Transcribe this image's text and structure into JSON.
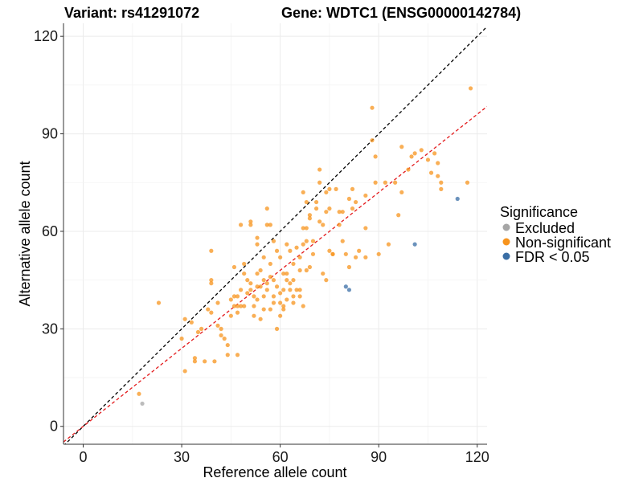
{
  "chart_data": {
    "type": "scatter",
    "title_left": "Variant: rs41291072",
    "title_right": "Gene: WDTC1 (ENSG00000142784)",
    "xlabel": "Reference allele count",
    "ylabel": "Alternative allele count",
    "xlim": [
      -6,
      123
    ],
    "ylim": [
      -5.5,
      124
    ],
    "xticks": [
      0,
      30,
      60,
      90,
      120
    ],
    "yticks": [
      0,
      30,
      60,
      90,
      120
    ],
    "grid": true,
    "legend": {
      "title": "Significance",
      "position": "right",
      "entries": [
        {
          "label": "Excluded",
          "color": "#a6a6a6"
        },
        {
          "label": "Non-significant",
          "color": "#f7941d"
        },
        {
          "label": "FDR < 0.05",
          "color": "#3a6ea5"
        }
      ]
    },
    "reference_lines": [
      {
        "name": "identity",
        "color": "#000000",
        "slope": 1,
        "intercept": 0
      },
      {
        "name": "fit",
        "color": "#e31a1c",
        "slope": 0.8,
        "intercept": 0
      }
    ],
    "series": [
      {
        "name": "Excluded",
        "color": "#a6a6a6",
        "points": [
          [
            18,
            7
          ]
        ]
      },
      {
        "name": "Non-significant",
        "color": "#f7941d",
        "points": [
          [
            17,
            10
          ],
          [
            23,
            38
          ],
          [
            30,
            27
          ],
          [
            31,
            17
          ],
          [
            31,
            33
          ],
          [
            33,
            32
          ],
          [
            34,
            21
          ],
          [
            34,
            20
          ],
          [
            35,
            29
          ],
          [
            36,
            30
          ],
          [
            37,
            20
          ],
          [
            38,
            36
          ],
          [
            39,
            35
          ],
          [
            39,
            45
          ],
          [
            39,
            54
          ],
          [
            39,
            44
          ],
          [
            40,
            20
          ],
          [
            41,
            38
          ],
          [
            41,
            31
          ],
          [
            42,
            30
          ],
          [
            42,
            28
          ],
          [
            43,
            27
          ],
          [
            44,
            22
          ],
          [
            44,
            25
          ],
          [
            45,
            34
          ],
          [
            45,
            39
          ],
          [
            46,
            49
          ],
          [
            46,
            40
          ],
          [
            46,
            37
          ],
          [
            47,
            35
          ],
          [
            47,
            40
          ],
          [
            47,
            22
          ],
          [
            47,
            37
          ],
          [
            48,
            42
          ],
          [
            48,
            62
          ],
          [
            48,
            37
          ],
          [
            49,
            47
          ],
          [
            49,
            50
          ],
          [
            49,
            37
          ],
          [
            50,
            41
          ],
          [
            50,
            45
          ],
          [
            51,
            42
          ],
          [
            51,
            62
          ],
          [
            51,
            63
          ],
          [
            51,
            44
          ],
          [
            52,
            40
          ],
          [
            52,
            37
          ],
          [
            52,
            34
          ],
          [
            53,
            47
          ],
          [
            53,
            39
          ],
          [
            53,
            43
          ],
          [
            53,
            56
          ],
          [
            53,
            58
          ],
          [
            54,
            33
          ],
          [
            54,
            43
          ],
          [
            54,
            48
          ],
          [
            55,
            45
          ],
          [
            55,
            52
          ],
          [
            55,
            36
          ],
          [
            55,
            40
          ],
          [
            56,
            62
          ],
          [
            56,
            67
          ],
          [
            56,
            44
          ],
          [
            56,
            42
          ],
          [
            57,
            46
          ],
          [
            57,
            62
          ],
          [
            57,
            50
          ],
          [
            57,
            36
          ],
          [
            58,
            45
          ],
          [
            58,
            57
          ],
          [
            58,
            40
          ],
          [
            58,
            38
          ],
          [
            59,
            30
          ],
          [
            59,
            54
          ],
          [
            59,
            43
          ],
          [
            60,
            41
          ],
          [
            60,
            38
          ],
          [
            60,
            34
          ],
          [
            60,
            52
          ],
          [
            61,
            47
          ],
          [
            61,
            37
          ],
          [
            61,
            42
          ],
          [
            61,
            36
          ],
          [
            62,
            47
          ],
          [
            62,
            39
          ],
          [
            62,
            45
          ],
          [
            62,
            56
          ],
          [
            63,
            54
          ],
          [
            63,
            44
          ],
          [
            63,
            42
          ],
          [
            64,
            40
          ],
          [
            64,
            50
          ],
          [
            64,
            45
          ],
          [
            64,
            38
          ],
          [
            65,
            42
          ],
          [
            65,
            55
          ],
          [
            66,
            42
          ],
          [
            66,
            52
          ],
          [
            66,
            48
          ],
          [
            66,
            40
          ],
          [
            67,
            37
          ],
          [
            67,
            61
          ],
          [
            67,
            56
          ],
          [
            67,
            72
          ],
          [
            68,
            61
          ],
          [
            68,
            57
          ],
          [
            68,
            69
          ],
          [
            68,
            48
          ],
          [
            69,
            49
          ],
          [
            69,
            64
          ],
          [
            69,
            65
          ],
          [
            70,
            53
          ],
          [
            70,
            57
          ],
          [
            71,
            69
          ],
          [
            71,
            67
          ],
          [
            72,
            75
          ],
          [
            72,
            79
          ],
          [
            72,
            63
          ],
          [
            73,
            62
          ],
          [
            73,
            47
          ],
          [
            74,
            45
          ],
          [
            74,
            72
          ],
          [
            74,
            66
          ],
          [
            75,
            67
          ],
          [
            75,
            54
          ],
          [
            75,
            73
          ],
          [
            76,
            53
          ],
          [
            76,
            53
          ],
          [
            77,
            73
          ],
          [
            78,
            62
          ],
          [
            78,
            66
          ],
          [
            79,
            66
          ],
          [
            79,
            57
          ],
          [
            80,
            53
          ],
          [
            81,
            70
          ],
          [
            81,
            49
          ],
          [
            82,
            73
          ],
          [
            82,
            67
          ],
          [
            83,
            52
          ],
          [
            83,
            69
          ],
          [
            84,
            54
          ],
          [
            86,
            61
          ],
          [
            86,
            52
          ],
          [
            86,
            71
          ],
          [
            88,
            98
          ],
          [
            88,
            88
          ],
          [
            89,
            83
          ],
          [
            89,
            75
          ],
          [
            90,
            53
          ],
          [
            92,
            75
          ],
          [
            93,
            56
          ],
          [
            95,
            75
          ],
          [
            96,
            65
          ],
          [
            97,
            72
          ],
          [
            97,
            86
          ],
          [
            99,
            79
          ],
          [
            100,
            83
          ],
          [
            101,
            84
          ],
          [
            103,
            85
          ],
          [
            105,
            82
          ],
          [
            106,
            78
          ],
          [
            107,
            84
          ],
          [
            108,
            81
          ],
          [
            108,
            77
          ],
          [
            109,
            75
          ],
          [
            109,
            73
          ],
          [
            117,
            75
          ],
          [
            118,
            104
          ]
        ]
      },
      {
        "name": "FDR < 0.05",
        "color": "#3a6ea5",
        "points": [
          [
            80,
            43
          ],
          [
            81,
            42
          ],
          [
            101,
            56
          ],
          [
            114,
            70
          ]
        ]
      }
    ]
  }
}
